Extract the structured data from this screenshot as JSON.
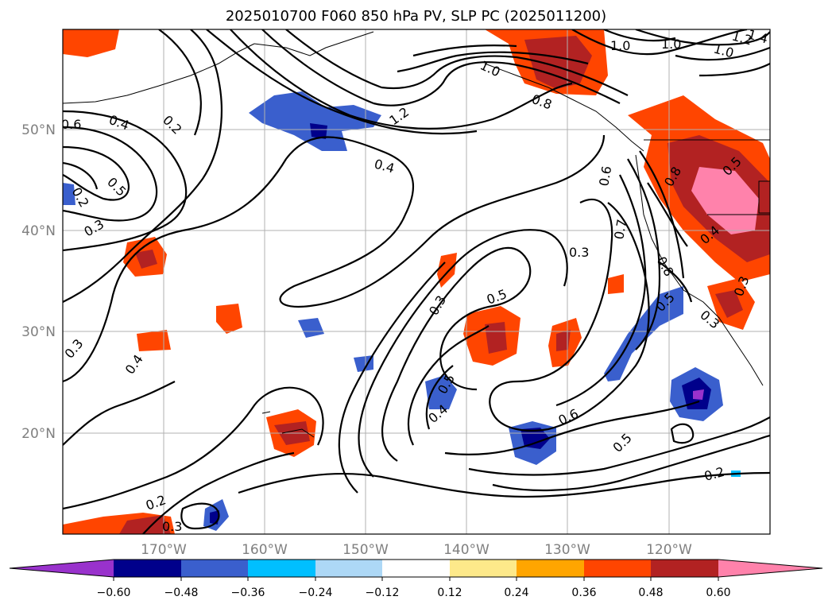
{
  "title": "2025010700 F060 850 hPa PV, SLP PC (2025011200)",
  "map": {
    "lat_labels": [
      "50°N",
      "40°N",
      "30°N",
      "20°N"
    ],
    "lon_labels": [
      "170°W",
      "160°W",
      "150°W",
      "140°W",
      "130°W",
      "120°W"
    ],
    "contour_labels": [
      "0.6",
      "0.4",
      "0.2",
      "0.5",
      "0.2",
      "0.3",
      "1.0",
      "1.0",
      "1.0",
      "1.0",
      "1.2",
      "0.8",
      "1.2",
      "0.4",
      "0.6",
      "0.8",
      "0.5",
      "0.4",
      "0.3",
      "0.7",
      "0.8",
      "0.5",
      "0.3",
      "0.3",
      "0.5",
      "0.3",
      "0.5",
      "0.4",
      "0.6",
      "0.5",
      "0.3",
      "0.4",
      "0.2",
      "0.3",
      "0.2",
      "1.4"
    ]
  },
  "colorbar": {
    "ticks": [
      "−0.60",
      "−0.48",
      "−0.36",
      "−0.24",
      "−0.12",
      "0.12",
      "0.24",
      "0.36",
      "0.48",
      "0.60"
    ],
    "colors": [
      "#9932cc",
      "#00008b",
      "#3a5fcd",
      "#00bfff",
      "#add8f6",
      "#ffffff",
      "#fde98a",
      "#ffa500",
      "#ff4500",
      "#b22222",
      "#ff82ab"
    ]
  }
}
